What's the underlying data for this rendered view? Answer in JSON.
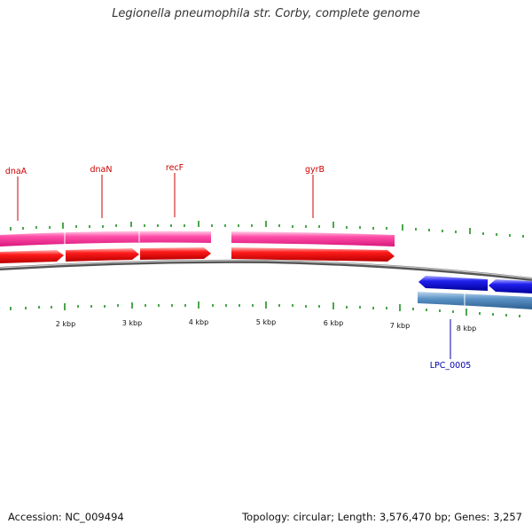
{
  "header": {
    "title": "Legionella pneumophila str. Corby, complete genome"
  },
  "footer": {
    "accession": "Accession: NC_009494",
    "summary": "Topology: circular; Length: 3,576,470 bp; Genes: 3,257"
  },
  "scale": {
    "labels": [
      "2 kbp",
      "3 kbp",
      "4 kbp",
      "5 kbp",
      "6 kbp",
      "7 kbp",
      "8 kbp"
    ]
  },
  "genes": {
    "forward": [
      "dnaA",
      "dnaN",
      "recF",
      "gyrB"
    ],
    "reverse": [
      "LPC_0005"
    ]
  },
  "colors": {
    "forward_label": "#cc0000",
    "reverse_label": "#0000aa",
    "gene_band": "#ff3f9f",
    "cds_arrow": "#ee0000",
    "rev_arrow": "#1f1fe6",
    "rev_band": "#4a88c0",
    "tick": "#118811",
    "backbone": "#888888"
  }
}
